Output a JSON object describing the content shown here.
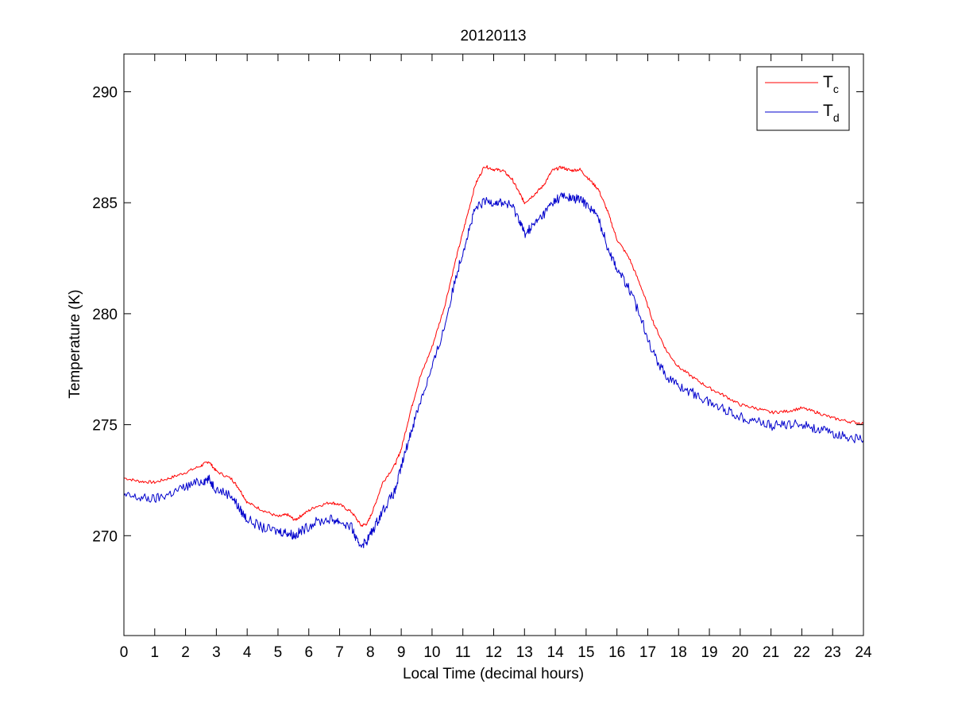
{
  "chart_data": {
    "type": "line",
    "title": "20120113",
    "xlabel": "Local Time (decimal hours)",
    "ylabel": "Temperature (K)",
    "xlim": [
      0,
      24
    ],
    "ylim": [
      265.5,
      291.7
    ],
    "xticks": [
      0,
      1,
      2,
      3,
      4,
      5,
      6,
      7,
      8,
      9,
      10,
      11,
      12,
      13,
      14,
      15,
      16,
      17,
      18,
      19,
      20,
      21,
      22,
      23,
      24
    ],
    "yticks": [
      270,
      275,
      280,
      285,
      290
    ],
    "grid": false,
    "legend_position": "top-right",
    "series": [
      {
        "name": "Tc",
        "legend_main": "T",
        "legend_sub": "c",
        "color": "#ff0000",
        "points": [
          [
            0,
            272.6
          ],
          [
            0.5,
            272.45
          ],
          [
            1,
            272.4
          ],
          [
            1.5,
            272.6
          ],
          [
            2,
            272.85
          ],
          [
            2.5,
            273.15
          ],
          [
            2.75,
            273.35
          ],
          [
            3,
            272.9
          ],
          [
            3.5,
            272.55
          ],
          [
            3.75,
            272.1
          ],
          [
            4,
            271.5
          ],
          [
            4.5,
            271.15
          ],
          [
            5,
            270.85
          ],
          [
            5.3,
            270.95
          ],
          [
            5.55,
            270.7
          ],
          [
            5.8,
            270.95
          ],
          [
            6.2,
            271.3
          ],
          [
            6.7,
            271.5
          ],
          [
            7,
            271.4
          ],
          [
            7.4,
            271.05
          ],
          [
            7.7,
            270.45
          ],
          [
            7.9,
            270.55
          ],
          [
            8.1,
            271.2
          ],
          [
            8.4,
            272.4
          ],
          [
            8.8,
            273.2
          ],
          [
            9,
            273.9
          ],
          [
            9.3,
            275.6
          ],
          [
            9.6,
            277.1
          ],
          [
            10,
            278.5
          ],
          [
            10.4,
            280.3
          ],
          [
            10.8,
            282.6
          ],
          [
            11.1,
            284.2
          ],
          [
            11.4,
            285.8
          ],
          [
            11.7,
            286.65
          ],
          [
            12,
            286.5
          ],
          [
            12.3,
            286.45
          ],
          [
            12.6,
            286.05
          ],
          [
            12.85,
            285.4
          ],
          [
            13,
            285
          ],
          [
            13.3,
            285.35
          ],
          [
            13.6,
            285.75
          ],
          [
            13.9,
            286.45
          ],
          [
            14.2,
            286.6
          ],
          [
            14.5,
            286.45
          ],
          [
            14.8,
            286.5
          ],
          [
            15.1,
            286.05
          ],
          [
            15.4,
            285.6
          ],
          [
            15.7,
            284.6
          ],
          [
            16,
            283.35
          ],
          [
            16.4,
            282.5
          ],
          [
            16.8,
            281.15
          ],
          [
            17.2,
            279.55
          ],
          [
            17.6,
            278.35
          ],
          [
            18,
            277.6
          ],
          [
            18.5,
            277.1
          ],
          [
            19,
            276.65
          ],
          [
            19.5,
            276.3
          ],
          [
            20,
            275.9
          ],
          [
            20.5,
            275.75
          ],
          [
            21,
            275.55
          ],
          [
            21.5,
            275.6
          ],
          [
            22,
            275.75
          ],
          [
            22.5,
            275.55
          ],
          [
            23,
            275.3
          ],
          [
            23.5,
            275.15
          ],
          [
            24,
            275.05
          ]
        ]
      },
      {
        "name": "Td",
        "legend_main": "T",
        "legend_sub": "d",
        "color": "#0000cc",
        "points": [
          [
            0,
            271.8
          ],
          [
            0.5,
            271.7
          ],
          [
            1,
            271.65
          ],
          [
            1.5,
            271.9
          ],
          [
            2,
            272.2
          ],
          [
            2.5,
            272.45
          ],
          [
            2.75,
            272.55
          ],
          [
            3,
            272.1
          ],
          [
            3.5,
            271.8
          ],
          [
            3.75,
            271.2
          ],
          [
            4,
            270.75
          ],
          [
            4.5,
            270.35
          ],
          [
            5,
            270.2
          ],
          [
            5.3,
            270.15
          ],
          [
            5.55,
            270
          ],
          [
            5.8,
            270.25
          ],
          [
            6.2,
            270.6
          ],
          [
            6.7,
            270.75
          ],
          [
            7,
            270.65
          ],
          [
            7.4,
            270.35
          ],
          [
            7.6,
            269.6
          ],
          [
            7.85,
            269.7
          ],
          [
            8.1,
            270.3
          ],
          [
            8.4,
            271.15
          ],
          [
            8.8,
            272
          ],
          [
            9,
            273.1
          ],
          [
            9.3,
            274.6
          ],
          [
            9.6,
            276
          ],
          [
            10,
            277.55
          ],
          [
            10.4,
            279.4
          ],
          [
            10.8,
            281.8
          ],
          [
            11.1,
            283.3
          ],
          [
            11.4,
            284.7
          ],
          [
            11.7,
            285.05
          ],
          [
            12,
            285.05
          ],
          [
            12.3,
            285
          ],
          [
            12.6,
            284.85
          ],
          [
            12.85,
            284.2
          ],
          [
            13,
            283.6
          ],
          [
            13.3,
            284
          ],
          [
            13.6,
            284.45
          ],
          [
            13.9,
            285
          ],
          [
            14.2,
            285.3
          ],
          [
            14.5,
            285.2
          ],
          [
            14.8,
            285.15
          ],
          [
            15.1,
            284.85
          ],
          [
            15.4,
            284.3
          ],
          [
            15.7,
            283
          ],
          [
            16,
            282.05
          ],
          [
            16.4,
            281.1
          ],
          [
            16.8,
            279.75
          ],
          [
            17.2,
            278.15
          ],
          [
            17.6,
            277.2
          ],
          [
            18,
            276.75
          ],
          [
            18.5,
            276.4
          ],
          [
            19,
            276
          ],
          [
            19.5,
            275.7
          ],
          [
            20,
            275.35
          ],
          [
            20.5,
            275.2
          ],
          [
            21,
            274.95
          ],
          [
            21.5,
            275
          ],
          [
            22,
            275.05
          ],
          [
            22.5,
            274.8
          ],
          [
            23,
            274.6
          ],
          [
            23.5,
            274.45
          ],
          [
            24,
            274.3
          ]
        ]
      }
    ]
  }
}
